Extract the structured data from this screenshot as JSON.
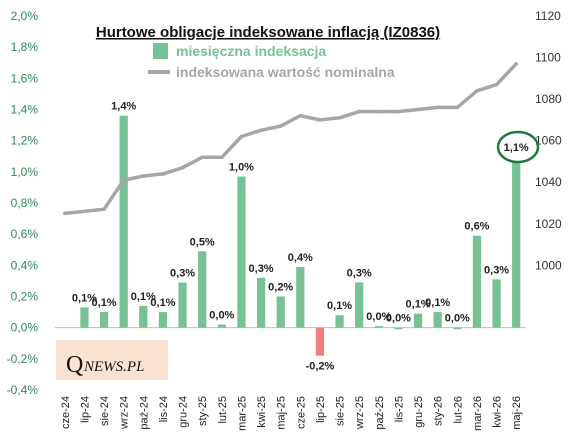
{
  "chart_data": {
    "type": "bar",
    "title": "Hurtowe obligacje indeksowane inflacją (IZ0836)",
    "categories": [
      "cze-24",
      "lip-24",
      "sie-24",
      "wrz-24",
      "paź-24",
      "lis-24",
      "gru-24",
      "sty-25",
      "lut-25",
      "mar-25",
      "kwi-25",
      "maj-25",
      "cze-25",
      "lip-25",
      "sie-25",
      "wrz-25",
      "paź-25",
      "lis-25",
      "gru-25",
      "sty-26",
      "lut-26",
      "mar-26",
      "kwi-26",
      "maj-26"
    ],
    "series": [
      {
        "name": "miesięczna indeksacja",
        "type": "bar",
        "axis": "left",
        "color": "#77c196",
        "negative_color": "#f08080",
        "values": [
          null,
          0.13,
          0.1,
          1.36,
          0.14,
          0.1,
          0.29,
          0.49,
          0.02,
          0.97,
          0.32,
          0.2,
          0.39,
          -0.18,
          0.08,
          0.29,
          0.01,
          0.0,
          0.09,
          0.1,
          0.0,
          0.59,
          0.31,
          1.07
        ],
        "labels": [
          "",
          "0,1%",
          "0,1%",
          "1,4%",
          "0,1%",
          "0,1%",
          "0,3%",
          "0,5%",
          "0,0%",
          "1,0%",
          "0,3%",
          "0,2%",
          "0,4%",
          "-0,2%",
          "0,1%",
          "0,3%",
          "0,0%",
          "0,0%",
          "0,1%",
          "0,1%",
          "0,0%",
          "0,6%",
          "0,3%",
          "1,1%"
        ]
      },
      {
        "name": "indeksowana wartość nominalna",
        "type": "line",
        "axis": "right",
        "color": "#a6a6a6",
        "values": [
          1025,
          1026,
          1027,
          1041,
          1043,
          1044,
          1047,
          1052,
          1052,
          1062,
          1065,
          1067,
          1072,
          1070,
          1071,
          1074,
          1074,
          1074,
          1075,
          1076,
          1076,
          1084,
          1087,
          1097
        ]
      }
    ],
    "y_left": {
      "ticks": [
        "-0,4%",
        "-0,2%",
        "0,0%",
        "0,2%",
        "0,4%",
        "0,6%",
        "0,8%",
        "1,0%",
        "1,2%",
        "1,4%",
        "1,6%",
        "1,8%",
        "2,0%"
      ],
      "min": -0.4,
      "max": 2.0,
      "color": "#2e8b57"
    },
    "y_right": {
      "ticks": [
        "1000",
        "1020",
        "1040",
        "1060",
        "1080",
        "1100",
        "1120"
      ],
      "min": 940,
      "max": 1120
    },
    "highlight_index": 23,
    "highlight_color": "#1e7a3c",
    "grid": false,
    "legend_position": "top-center"
  },
  "logo": {
    "initial": "Q",
    "rest": "NEWS.PL"
  }
}
